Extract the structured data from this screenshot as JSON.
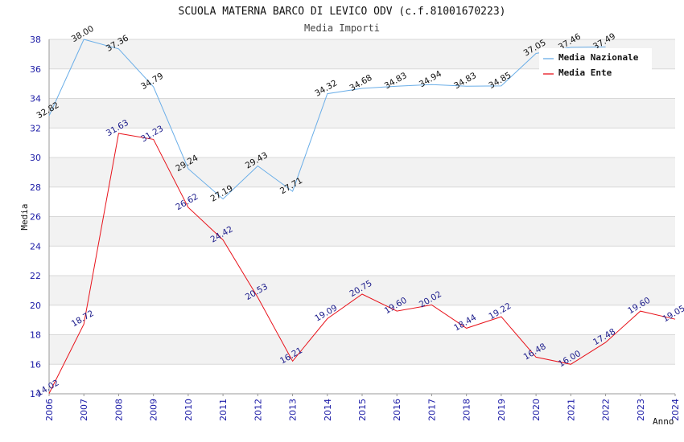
{
  "chart_data": {
    "type": "line",
    "title": "SCUOLA MATERNA BARCO DI LEVICO ODV (c.f.81001670223)",
    "subtitle": "Media Importi",
    "xlabel": "Anno",
    "ylabel": "Media",
    "ylim": [
      14,
      38
    ],
    "yticks": [
      "14",
      "16",
      "18",
      "20",
      "22",
      "24",
      "26",
      "28",
      "30",
      "32",
      "34",
      "36",
      "38"
    ],
    "categories": [
      "2006",
      "2007",
      "2008",
      "2009",
      "2010",
      "2011",
      "2012",
      "2013",
      "2014",
      "2015",
      "2016",
      "2017",
      "2018",
      "2019",
      "2020",
      "2021",
      "2022",
      "2023",
      "2024"
    ],
    "series": [
      {
        "name": "Media Nazionale",
        "color": "#6aaee8",
        "values": [
          32.82,
          38.0,
          37.36,
          34.79,
          29.24,
          27.19,
          29.43,
          27.71,
          34.32,
          34.68,
          34.83,
          34.94,
          34.83,
          34.85,
          37.05,
          37.46,
          37.49,
          null,
          null
        ],
        "labels": [
          "32.82",
          "38.00",
          "37.36",
          "34.79",
          "29.24",
          "27.19",
          "29.43",
          "27.71",
          "34.32",
          "34.68",
          "34.83",
          "34.94",
          "34.83",
          "34.85",
          "37.05",
          "37.46",
          "37.49",
          "",
          ""
        ]
      },
      {
        "name": "Media Ente",
        "color": "#e8141c",
        "values": [
          14.02,
          18.72,
          31.63,
          31.23,
          26.62,
          24.42,
          20.53,
          16.21,
          19.09,
          20.75,
          19.6,
          20.02,
          18.44,
          19.22,
          16.48,
          16.0,
          17.48,
          19.6,
          19.05
        ],
        "labels": [
          "14.02",
          "18.72",
          "31.63",
          "31.23",
          "26.62",
          "24.42",
          "20.53",
          "16.21",
          "19.09",
          "20.75",
          "19.60",
          "20.02",
          "18.44",
          "19.22",
          "16.48",
          "16.00",
          "17.48",
          "19.60",
          "19.05"
        ]
      }
    ],
    "grid": true,
    "legend": "top-right"
  }
}
